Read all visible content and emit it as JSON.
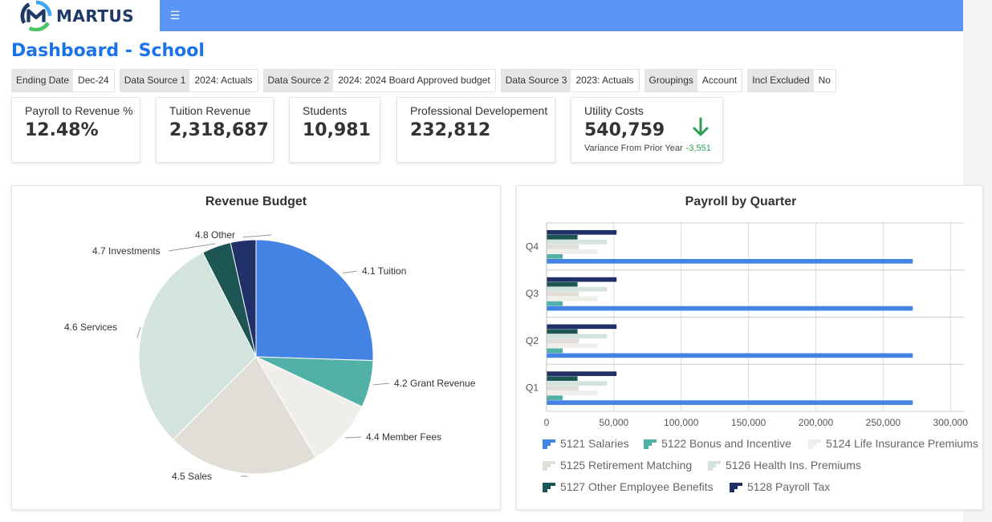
{
  "app": {
    "name": "MARTUS",
    "title": "Dashboard - School"
  },
  "filters": [
    {
      "label": "Ending Date",
      "value": "Dec-24"
    },
    {
      "label": "Data Source 1",
      "value": "2024: Actuals"
    },
    {
      "label": "Data Source 2",
      "value": "2024: 2024 Board Approved budget"
    },
    {
      "label": "Data Source 3",
      "value": "2023: Actuals"
    },
    {
      "label": "Groupings",
      "value": "Account"
    },
    {
      "label": "Incl Excluded",
      "value": "No"
    }
  ],
  "kpis": [
    {
      "label": "Payroll to Revenue %",
      "value": "12.48%"
    },
    {
      "label": "Tuition Revenue",
      "value": "2,318,687"
    },
    {
      "label": "Students",
      "value": "10,981"
    },
    {
      "label": "Professional Developement",
      "value": "232,812"
    },
    {
      "label": "Utility Costs",
      "value": "540,759",
      "sub_label": "Variance From Prior Year",
      "sub_value": "-3,551",
      "trend": "down",
      "trend_color": "#2e9e53"
    }
  ],
  "colors": {
    "nav": "#5b95f6",
    "title": "#1a73e8",
    "logo": "#1f3a66"
  },
  "chart_data": [
    {
      "type": "pie",
      "title": "Revenue Budget",
      "categories": [
        "4.1 Tuition",
        "4.2 Grant Revenue",
        "4.4 Member Fees",
        "4.5 Sales",
        "4.6 Services",
        "4.7 Investments",
        "4.8 Other"
      ],
      "values": [
        25.5,
        6.5,
        9.5,
        21,
        30,
        4,
        3.5
      ],
      "colors": [
        "#4283e4",
        "#52b1a6",
        "#efeeea",
        "#e1ddd7",
        "#d3e3dd",
        "#1c5553",
        "#22306a"
      ]
    },
    {
      "type": "bar",
      "orientation": "horizontal",
      "title": "Payroll by Quarter",
      "categories": [
        "Q4",
        "Q3",
        "Q2",
        "Q1"
      ],
      "xlim": [
        0,
        310000
      ],
      "xticks": [
        0,
        50000,
        100000,
        150000,
        200000,
        250000,
        300000
      ],
      "xtick_labels": [
        "0",
        "50,000",
        "100,000",
        "150,000",
        "200,000",
        "250,000",
        "300,000"
      ],
      "series": [
        {
          "name": "5128 Payroll Tax",
          "color": "#22306a",
          "values": [
            52000,
            52000,
            52000,
            52000
          ]
        },
        {
          "name": "5127 Other Employee Benefits",
          "color": "#1c5553",
          "values": [
            23000,
            23000,
            23000,
            23000
          ]
        },
        {
          "name": "5126 Health Ins. Premiums",
          "color": "#d3e3dd",
          "values": [
            45000,
            45000,
            45000,
            45000
          ]
        },
        {
          "name": "5125 Retirement Matching",
          "color": "#e1ddd7",
          "values": [
            24000,
            24000,
            24000,
            24000
          ]
        },
        {
          "name": "5124 Life Insurance Premiums",
          "color": "#efeeea",
          "values": [
            38000,
            38000,
            38000,
            38000
          ]
        },
        {
          "name": "5122 Bonus and Incentive",
          "color": "#52b1a6",
          "values": [
            12000,
            12000,
            12000,
            12000
          ]
        },
        {
          "name": "5121 Salaries",
          "color": "#4283e4",
          "values": [
            272000,
            272000,
            272000,
            272000
          ]
        }
      ],
      "legend": [
        "5121 Salaries",
        "5122 Bonus and Incentive",
        "5124 Life Insurance Premiums",
        "5125 Retirement Matching",
        "5126 Health Ins. Premiums",
        "5127 Other Employee Benefits",
        "5128 Payroll Tax"
      ]
    }
  ]
}
